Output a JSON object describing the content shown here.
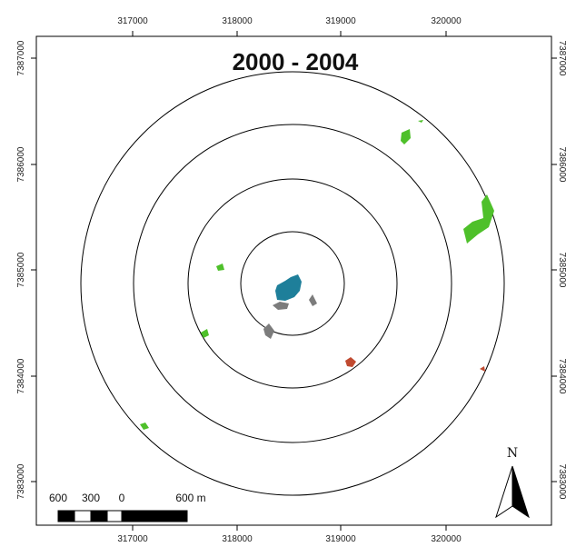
{
  "title": "2000 - 2004",
  "x_axis_ticks": [
    "317000",
    "318000",
    "319000",
    "320000"
  ],
  "y_axis_ticks": [
    "7387000",
    "7386000",
    "7385000",
    "7384000",
    "7383000"
  ],
  "scale_bar": {
    "labels": [
      "600",
      "300",
      "0",
      "600 m"
    ]
  },
  "north_arrow": {
    "label": "N"
  },
  "ring_count": 4,
  "patch_colors": {
    "green": "#4ec02a",
    "blue": "#1e7f9a",
    "gray": "#7c7c7c",
    "red": "#c04a30"
  }
}
